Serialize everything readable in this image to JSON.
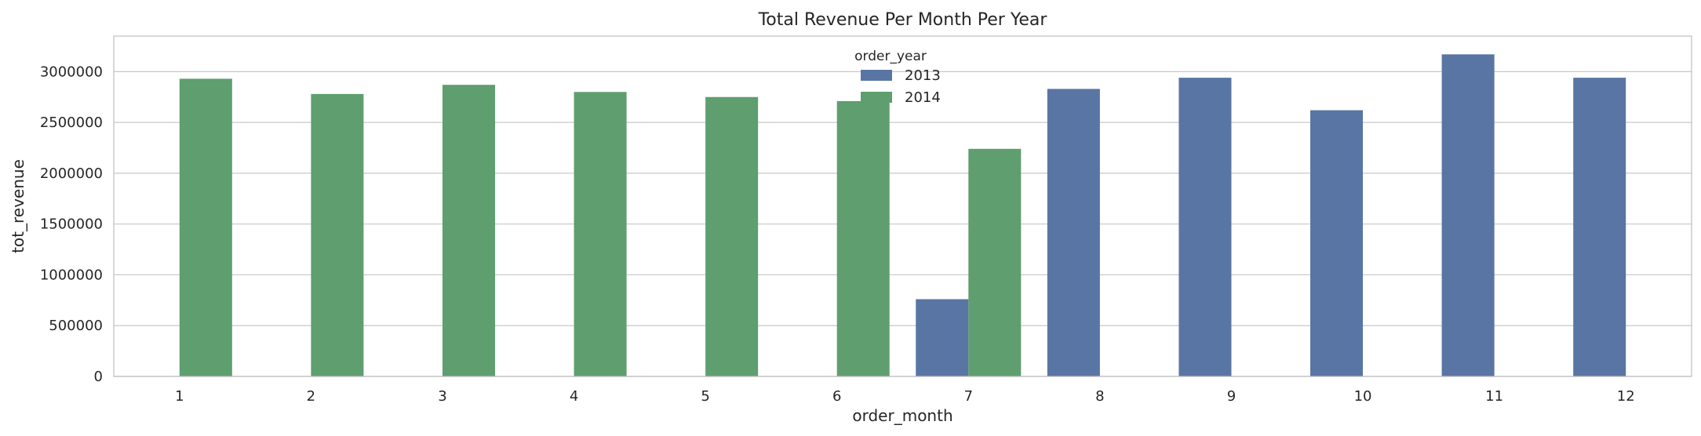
{
  "chart_data": {
    "type": "bar",
    "title": "Total Revenue Per Month Per Year",
    "xlabel": "order_month",
    "ylabel": "tot_revenue",
    "categories": [
      "1",
      "2",
      "3",
      "4",
      "5",
      "6",
      "7",
      "8",
      "9",
      "10",
      "11",
      "12"
    ],
    "ylim": [
      0,
      3350000
    ],
    "yticks": [
      "0",
      "500000",
      "1000000",
      "1500000",
      "2000000",
      "2500000",
      "3000000"
    ],
    "grid": true,
    "legend": {
      "title": "order_year",
      "placement": "top-center"
    },
    "series": [
      {
        "name": "2013",
        "color": "#5975a4",
        "values": [
          null,
          null,
          null,
          null,
          null,
          null,
          760000,
          2830000,
          2940000,
          2620000,
          3170000,
          2940000
        ]
      },
      {
        "name": "2014",
        "color": "#5f9e6e",
        "values": [
          2930000,
          2780000,
          2870000,
          2800000,
          2750000,
          2710000,
          2240000,
          null,
          null,
          null,
          null,
          null
        ]
      }
    ]
  }
}
